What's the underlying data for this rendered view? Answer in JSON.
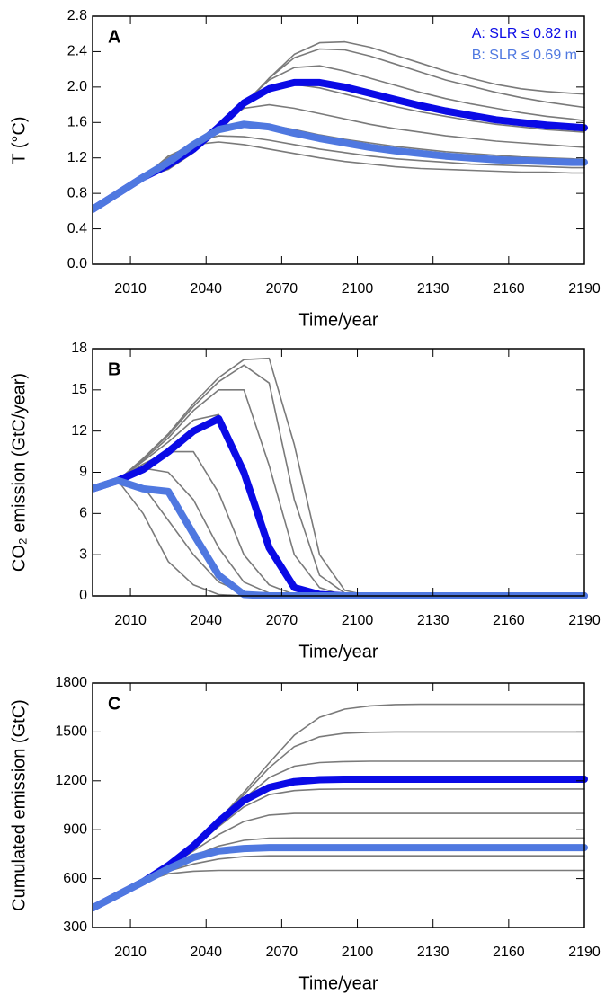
{
  "chart_data": [
    {
      "type": "line",
      "label": "A",
      "ylabel": "T (°C)",
      "xlabel": "Time/year",
      "x": [
        1995,
        2005,
        2015,
        2025,
        2035,
        2045,
        2055,
        2065,
        2075,
        2085,
        2095,
        2105,
        2115,
        2125,
        2135,
        2145,
        2155,
        2165,
        2175,
        2185,
        2190
      ],
      "xlim": [
        1995,
        2190
      ],
      "xticks": [
        2010,
        2040,
        2070,
        2100,
        2130,
        2160,
        2190
      ],
      "ylim": [
        0,
        2.8
      ],
      "yticks": [
        {
          "value": 0,
          "label": "0.0"
        },
        0.4,
        0.8,
        1.2,
        1.6,
        {
          "value": 2,
          "label": "2.0"
        },
        2.4,
        2.8
      ],
      "series": [
        {
          "color": "#7a7a7a",
          "values": [
            0.62,
            0.8,
            0.98,
            1.22,
            1.35,
            1.38,
            1.35,
            1.3,
            1.25,
            1.2,
            1.16,
            1.13,
            1.1,
            1.08,
            1.07,
            1.06,
            1.05,
            1.04,
            1.04,
            1.03,
            1.03
          ]
        },
        {
          "color": "#7a7a7a",
          "values": [
            0.62,
            0.8,
            0.98,
            1.2,
            1.38,
            1.45,
            1.44,
            1.4,
            1.35,
            1.3,
            1.26,
            1.22,
            1.19,
            1.17,
            1.15,
            1.13,
            1.12,
            1.11,
            1.1,
            1.09,
            1.09
          ]
        },
        {
          "color": "#7a7a7a",
          "values": [
            0.62,
            0.8,
            0.98,
            1.18,
            1.38,
            1.55,
            1.6,
            1.57,
            1.52,
            1.46,
            1.41,
            1.37,
            1.33,
            1.3,
            1.27,
            1.25,
            1.23,
            1.21,
            1.2,
            1.19,
            1.18
          ]
        },
        {
          "color": "#7a7a7a",
          "values": [
            0.62,
            0.8,
            0.98,
            1.15,
            1.36,
            1.58,
            1.76,
            1.8,
            1.76,
            1.7,
            1.64,
            1.58,
            1.53,
            1.49,
            1.45,
            1.42,
            1.39,
            1.37,
            1.35,
            1.33,
            1.32
          ]
        },
        {
          "color": "#7a7a7a",
          "values": [
            0.62,
            0.8,
            0.98,
            1.12,
            1.33,
            1.57,
            1.82,
            1.98,
            2.03,
            1.99,
            1.92,
            1.85,
            1.78,
            1.72,
            1.67,
            1.62,
            1.58,
            1.55,
            1.52,
            1.5,
            1.49
          ]
        },
        {
          "color": "#7a7a7a",
          "values": [
            0.62,
            0.8,
            0.98,
            1.1,
            1.3,
            1.55,
            1.82,
            2.08,
            2.22,
            2.24,
            2.18,
            2.1,
            2.02,
            1.94,
            1.87,
            1.81,
            1.76,
            1.71,
            1.67,
            1.64,
            1.62
          ]
        },
        {
          "color": "#7a7a7a",
          "values": [
            0.62,
            0.8,
            0.98,
            1.08,
            1.28,
            1.52,
            1.8,
            2.1,
            2.33,
            2.43,
            2.42,
            2.35,
            2.26,
            2.17,
            2.08,
            2.01,
            1.94,
            1.88,
            1.83,
            1.79,
            1.77
          ]
        },
        {
          "color": "#7a7a7a",
          "values": [
            0.62,
            0.8,
            0.98,
            1.07,
            1.26,
            1.5,
            1.78,
            2.1,
            2.37,
            2.5,
            2.51,
            2.45,
            2.36,
            2.27,
            2.18,
            2.1,
            2.03,
            1.98,
            1.95,
            1.93,
            1.92
          ]
        },
        {
          "name": "A: SLR ≤ 0.82 m",
          "color": "#0a0ae6",
          "highlight": true,
          "values": [
            0.62,
            0.8,
            0.98,
            1.12,
            1.3,
            1.55,
            1.82,
            1.98,
            2.05,
            2.05,
            2.0,
            1.93,
            1.86,
            1.79,
            1.73,
            1.68,
            1.63,
            1.6,
            1.57,
            1.55,
            1.54
          ]
        },
        {
          "name": "B: SLR ≤ 0.69 m",
          "color": "#4f78e0",
          "highlight": true,
          "values": [
            0.62,
            0.8,
            0.98,
            1.15,
            1.35,
            1.52,
            1.58,
            1.55,
            1.48,
            1.42,
            1.37,
            1.32,
            1.28,
            1.25,
            1.22,
            1.2,
            1.18,
            1.17,
            1.16,
            1.15,
            1.15
          ]
        }
      ]
    },
    {
      "type": "line",
      "label": "B",
      "ylabel": "CO₂ emission (GtC/year)",
      "xlabel": "Time/year",
      "x": [
        1995,
        2005,
        2015,
        2025,
        2035,
        2045,
        2055,
        2065,
        2075,
        2085,
        2095,
        2105,
        2115,
        2125,
        2135,
        2145,
        2155,
        2165,
        2175,
        2185,
        2190
      ],
      "xlim": [
        1995,
        2190
      ],
      "xticks": [
        2010,
        2040,
        2070,
        2100,
        2130,
        2160,
        2190
      ],
      "ylim": [
        0,
        18
      ],
      "yticks": [
        0,
        3,
        6,
        9,
        12,
        15,
        18
      ],
      "series": [
        {
          "color": "#7a7a7a",
          "values": [
            7.8,
            8.4,
            6.0,
            2.5,
            0.8,
            0.1,
            0,
            0,
            0,
            0,
            0,
            0,
            0,
            0,
            0,
            0,
            0,
            0,
            0,
            0,
            0
          ]
        },
        {
          "color": "#7a7a7a",
          "values": [
            7.8,
            8.4,
            8.0,
            5.5,
            3.0,
            1.0,
            0.2,
            0,
            0,
            0,
            0,
            0,
            0,
            0,
            0,
            0,
            0,
            0,
            0,
            0,
            0
          ]
        },
        {
          "color": "#7a7a7a",
          "values": [
            7.8,
            8.4,
            9.3,
            9.0,
            7.0,
            3.5,
            1.0,
            0.2,
            0,
            0,
            0,
            0,
            0,
            0,
            0,
            0,
            0,
            0,
            0,
            0,
            0
          ]
        },
        {
          "color": "#7a7a7a",
          "values": [
            7.8,
            8.4,
            9.6,
            10.5,
            10.5,
            7.5,
            3.0,
            0.8,
            0.1,
            0,
            0,
            0,
            0,
            0,
            0,
            0,
            0,
            0,
            0,
            0,
            0
          ]
        },
        {
          "color": "#7a7a7a",
          "values": [
            7.8,
            8.4,
            9.8,
            11.2,
            12.8,
            13.2,
            9.0,
            3.5,
            0.8,
            0.1,
            0,
            0,
            0,
            0,
            0,
            0,
            0,
            0,
            0,
            0,
            0
          ]
        },
        {
          "color": "#7a7a7a",
          "values": [
            7.8,
            8.4,
            9.9,
            11.5,
            13.5,
            15.0,
            15.0,
            9.5,
            3.0,
            0.6,
            0,
            0,
            0,
            0,
            0,
            0,
            0,
            0,
            0,
            0,
            0
          ]
        },
        {
          "color": "#7a7a7a",
          "values": [
            7.8,
            8.4,
            10.0,
            11.7,
            13.8,
            15.6,
            16.8,
            15.5,
            7.0,
            1.5,
            0.2,
            0,
            0,
            0,
            0,
            0,
            0,
            0,
            0,
            0,
            0
          ]
        },
        {
          "color": "#7a7a7a",
          "values": [
            7.8,
            8.4,
            10.0,
            11.8,
            14.0,
            15.9,
            17.2,
            17.3,
            11.0,
            3.0,
            0.4,
            0,
            0,
            0,
            0,
            0,
            0,
            0,
            0,
            0,
            0
          ]
        },
        {
          "color": "#0a0ae6",
          "highlight": true,
          "values": [
            7.8,
            8.4,
            9.2,
            10.5,
            12.0,
            12.9,
            9.0,
            3.5,
            0.6,
            0.1,
            0,
            0,
            0,
            0,
            0,
            0,
            0,
            0,
            0,
            0,
            0
          ]
        },
        {
          "color": "#4f78e0",
          "highlight": true,
          "values": [
            7.8,
            8.4,
            7.8,
            7.6,
            4.5,
            1.5,
            0.1,
            0,
            0,
            0,
            0,
            0,
            0,
            0,
            0,
            0,
            0,
            0,
            0,
            0,
            0
          ]
        }
      ]
    },
    {
      "type": "line",
      "label": "C",
      "ylabel": "Cumulated emission (GtC)",
      "xlabel": "Time/year",
      "x": [
        1995,
        2005,
        2015,
        2025,
        2035,
        2045,
        2055,
        2065,
        2075,
        2085,
        2095,
        2105,
        2115,
        2125,
        2135,
        2145,
        2155,
        2165,
        2175,
        2185,
        2190
      ],
      "xlim": [
        1995,
        2190
      ],
      "xticks": [
        2010,
        2040,
        2070,
        2100,
        2130,
        2160,
        2190
      ],
      "ylim": [
        300,
        1800
      ],
      "yticks": [
        300,
        600,
        900,
        1200,
        1500,
        1800
      ],
      "series": [
        {
          "color": "#7a7a7a",
          "values": [
            420,
            500,
            580,
            630,
            645,
            650,
            650,
            650,
            650,
            650,
            650,
            650,
            650,
            650,
            650,
            650,
            650,
            650,
            650,
            650,
            650
          ]
        },
        {
          "color": "#7a7a7a",
          "values": [
            420,
            500,
            580,
            645,
            690,
            720,
            735,
            740,
            740,
            740,
            740,
            740,
            740,
            740,
            740,
            740,
            740,
            740,
            740,
            740,
            740
          ]
        },
        {
          "color": "#7a7a7a",
          "values": [
            420,
            500,
            580,
            660,
            740,
            800,
            835,
            848,
            850,
            850,
            850,
            850,
            850,
            850,
            850,
            850,
            850,
            850,
            850,
            850,
            850
          ]
        },
        {
          "color": "#7a7a7a",
          "values": [
            420,
            500,
            580,
            670,
            770,
            870,
            950,
            990,
            1000,
            1000,
            1000,
            1000,
            1000,
            1000,
            1000,
            1000,
            1000,
            1000,
            1000,
            1000,
            1000
          ]
        },
        {
          "color": "#7a7a7a",
          "values": [
            420,
            500,
            580,
            675,
            790,
            920,
            1040,
            1115,
            1140,
            1148,
            1150,
            1150,
            1150,
            1150,
            1150,
            1150,
            1150,
            1150,
            1150,
            1150,
            1150
          ]
        },
        {
          "color": "#7a7a7a",
          "values": [
            420,
            500,
            580,
            680,
            800,
            940,
            1090,
            1220,
            1290,
            1312,
            1318,
            1320,
            1320,
            1320,
            1320,
            1320,
            1320,
            1320,
            1320,
            1320,
            1320
          ]
        },
        {
          "color": "#7a7a7a",
          "values": [
            420,
            500,
            580,
            680,
            805,
            955,
            1115,
            1280,
            1410,
            1470,
            1492,
            1498,
            1500,
            1500,
            1500,
            1500,
            1500,
            1500,
            1500,
            1500,
            1500
          ]
        },
        {
          "color": "#7a7a7a",
          "values": [
            420,
            500,
            580,
            680,
            810,
            960,
            1130,
            1310,
            1480,
            1590,
            1640,
            1660,
            1668,
            1670,
            1670,
            1670,
            1670,
            1670,
            1670,
            1670,
            1670
          ]
        },
        {
          "color": "#0a0ae6",
          "highlight": true,
          "values": [
            420,
            500,
            580,
            680,
            800,
            950,
            1080,
            1160,
            1195,
            1207,
            1210,
            1210,
            1210,
            1210,
            1210,
            1210,
            1210,
            1210,
            1210,
            1210,
            1210
          ]
        },
        {
          "color": "#4f78e0",
          "highlight": true,
          "values": [
            420,
            500,
            580,
            660,
            730,
            770,
            785,
            790,
            790,
            790,
            790,
            790,
            790,
            790,
            790,
            790,
            790,
            790,
            790,
            790,
            790
          ]
        }
      ]
    }
  ]
}
